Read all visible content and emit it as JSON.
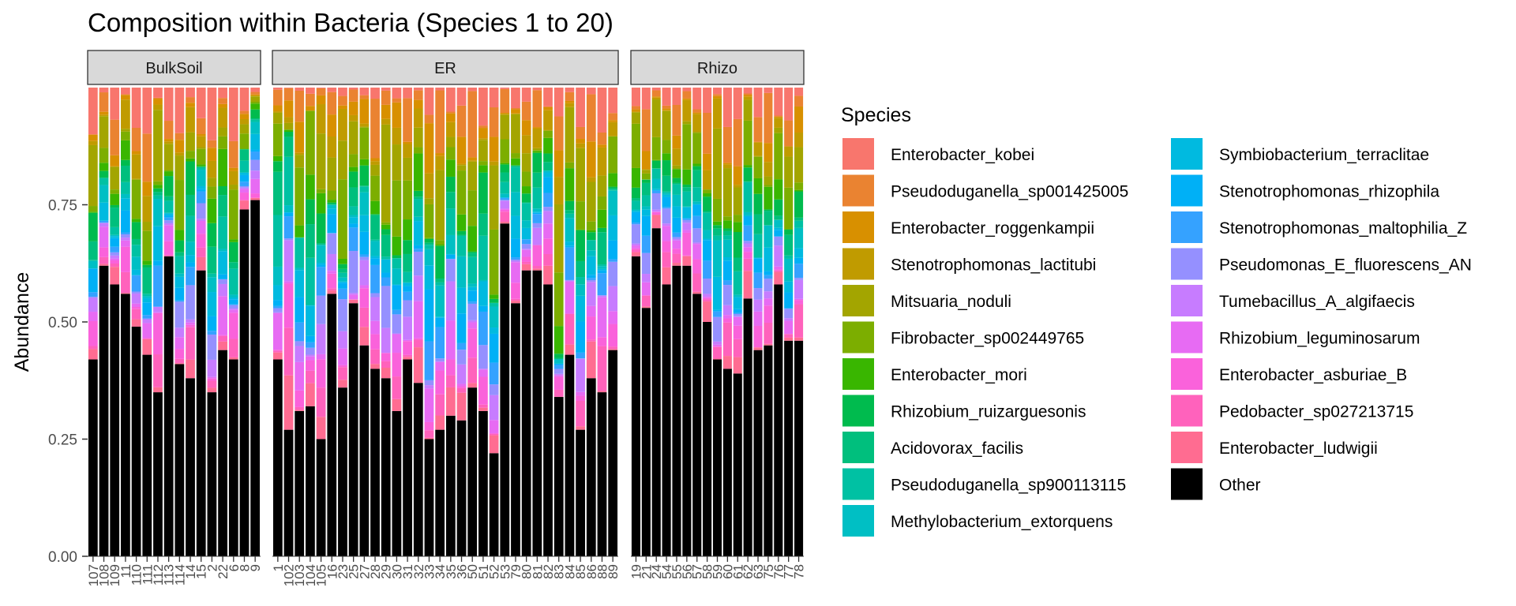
{
  "chart_data": {
    "type": "bar",
    "stacked": true,
    "title": "Composition within Bacteria (Species 1 to 20)",
    "xlabel": "",
    "ylabel": "Abundance",
    "ylim": [
      0,
      1
    ],
    "yticks": [
      "0.00",
      "0.25",
      "0.50",
      "0.75"
    ],
    "ytick_values": [
      0,
      0.25,
      0.5,
      0.75
    ],
    "grid": false,
    "legend_title": "Species",
    "legend_position": "right",
    "species": [
      "Enterobacter_kobei",
      "Pseudoduganella_sp001425005",
      "Enterobacter_roggenkampii",
      "Stenotrophomonas_lactitubi",
      "Mitsuaria_noduli",
      "Fibrobacter_sp002449765",
      "Enterobacter_mori",
      "Rhizobium_ruizarguesonis",
      "Acidovorax_facilis",
      "Pseudoduganella_sp900113115",
      "Methylobacterium_extorquens",
      "Symbiobacterium_terraclitae",
      "Stenotrophomonas_rhizophila",
      "Stenotrophomonas_maltophilia_Z",
      "Pseudomonas_E_fluorescens_AN",
      "Tumebacillus_A_algifaecis",
      "Rhizobium_leguminosarum",
      "Enterobacter_asburiae_B",
      "Pedobacter_sp027213715",
      "Enterobacter_ludwigii",
      "Other"
    ],
    "colors": [
      "#F8766D",
      "#EA8331",
      "#D89000",
      "#C09B00",
      "#A3A500",
      "#7CAE00",
      "#39B600",
      "#00BB4E",
      "#00BF7D",
      "#00C1A3",
      "#00BFC4",
      "#00BAE0",
      "#00B0F6",
      "#35A2FF",
      "#9590FF",
      "#C77CFF",
      "#E76BF3",
      "#FA62DB",
      "#FF62BC",
      "#FF6C91",
      "#000000"
    ],
    "panels": [
      {
        "name": "BulkSoil",
        "samples": [
          "107",
          "108",
          "109",
          "11",
          "110",
          "111",
          "112",
          "113",
          "114",
          "14",
          "15",
          "2",
          "22",
          "6",
          "8",
          "9"
        ],
        "other": [
          0.42,
          0.62,
          0.58,
          0.56,
          0.49,
          0.43,
          0.35,
          0.64,
          0.41,
          0.38,
          0.61,
          0.35,
          0.44,
          0.42,
          0.74,
          0.76
        ]
      },
      {
        "name": "ER",
        "samples": [
          "1",
          "102",
          "103",
          "104",
          "105",
          "16",
          "23",
          "25",
          "27",
          "28",
          "29",
          "30",
          "31",
          "32",
          "33",
          "34",
          "35",
          "36",
          "50",
          "51",
          "52",
          "53",
          "79",
          "80",
          "81",
          "82",
          "83",
          "84",
          "85",
          "86",
          "88",
          "89"
        ],
        "other": [
          0.42,
          0.27,
          0.31,
          0.32,
          0.25,
          0.56,
          0.36,
          0.54,
          0.45,
          0.4,
          0.38,
          0.31,
          0.42,
          0.37,
          0.25,
          0.27,
          0.3,
          0.29,
          0.36,
          0.31,
          0.22,
          0.71,
          0.54,
          0.61,
          0.61,
          0.58,
          0.34,
          0.43,
          0.27,
          0.38,
          0.35,
          0.44
        ]
      },
      {
        "name": "Rhizo",
        "samples": [
          "19",
          "21",
          "24",
          "54",
          "55",
          "56",
          "57",
          "58",
          "59",
          "60",
          "61",
          "62",
          "63",
          "75",
          "76",
          "77",
          "78"
        ],
        "other": [
          0.64,
          0.53,
          0.7,
          0.58,
          0.62,
          0.62,
          0.56,
          0.5,
          0.42,
          0.4,
          0.39,
          0.55,
          0.44,
          0.45,
          0.58,
          0.46,
          0.46
        ]
      }
    ]
  }
}
